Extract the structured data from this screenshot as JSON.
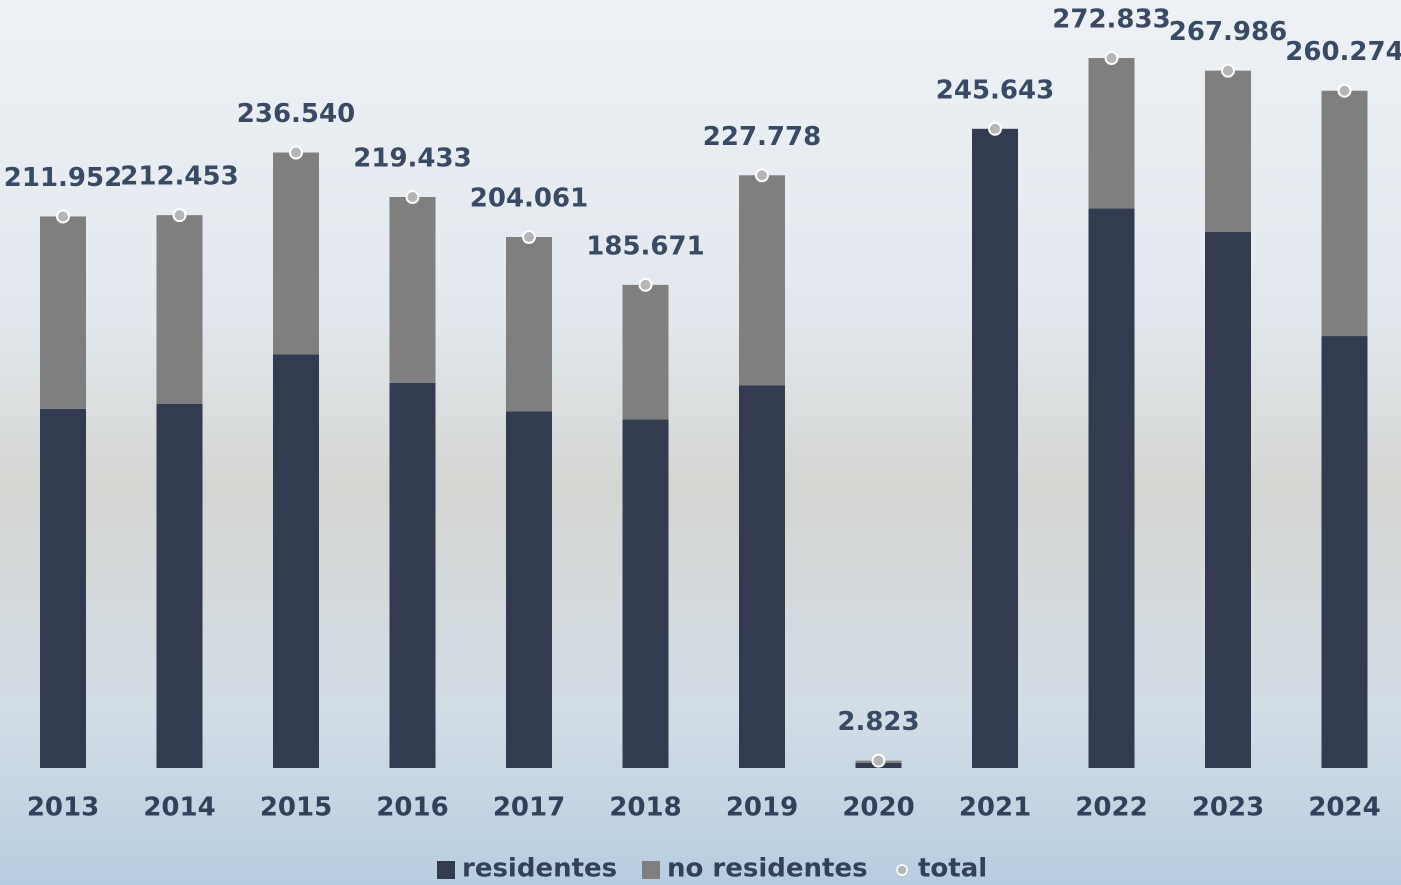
{
  "chart_data": {
    "type": "bar",
    "stacked": true,
    "categories": [
      "2013",
      "2014",
      "2015",
      "2016",
      "2017",
      "2018",
      "2019",
      "2020",
      "2021",
      "2022",
      "2023",
      "2024"
    ],
    "series": [
      {
        "name": "residentes",
        "color": "#323b4f",
        "values": [
          138000,
          140000,
          159000,
          148000,
          137000,
          134000,
          147000,
          2000,
          245643,
          215000,
          206000,
          166000
        ]
      },
      {
        "name": "no residentes",
        "color": "#7f7f7f",
        "values": [
          73952,
          72453,
          77540,
          71433,
          67061,
          51671,
          80778,
          823,
          0,
          57833,
          61986,
          94274
        ]
      },
      {
        "name": "total",
        "type": "point",
        "color": "#b5b5b5",
        "values": [
          211952,
          212453,
          236540,
          219433,
          204061,
          185671,
          227778,
          2823,
          245643,
          272833,
          267986,
          260274
        ],
        "value_labels": [
          "211.952",
          "212.453",
          "236.540",
          "219.433",
          "204.061",
          "185.671",
          "227.778",
          "2.823",
          "245.643",
          "272.833",
          "267.986",
          "260.274"
        ]
      }
    ],
    "ylim": [
      0,
      290000
    ],
    "grid": false,
    "legend": "bottom"
  }
}
